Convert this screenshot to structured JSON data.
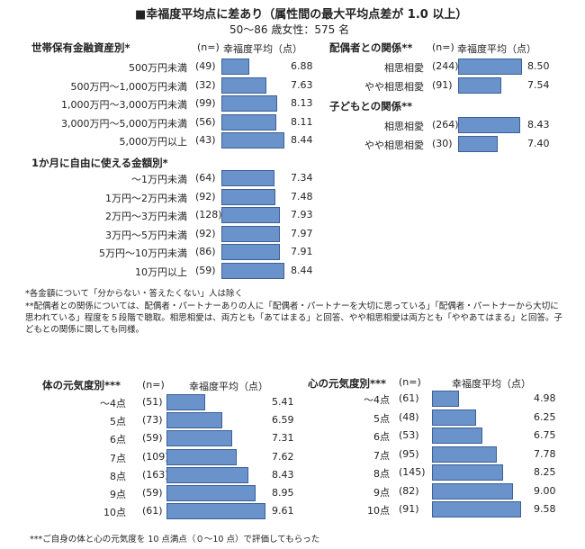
{
  "title": "■幸福度平均点に差あり（属性間の最大平均点差が 1.0 以上）",
  "subtitle": "50～86 歳女性：575 名",
  "header_n": "(n=)",
  "header_avg": "幸福度平均（点）",
  "colors": {
    "bar": "#6a93cc",
    "bar_border": "#3c5f95"
  },
  "chart_data": [
    {
      "type": "bar",
      "title": "世帯保有金融資産別*",
      "categories": [
        "500万円未満",
        "500万円～1,000万円未満",
        "1,000万円～3,000万円未満",
        "3,000万円～5,000万円未満",
        "5,000万円以上"
      ],
      "n": [
        "(49)",
        "(32)",
        "(99)",
        "(56)",
        "(43)"
      ],
      "values": [
        6.88,
        7.63,
        8.13,
        8.11,
        8.44
      ],
      "labels": [
        "6.88",
        "7.63",
        "8.13",
        "8.11",
        "8.44"
      ]
    },
    {
      "type": "bar",
      "title": "1か月に自由に使える金額別*",
      "categories": [
        "～1万円未満",
        "1万円～2万円未満",
        "2万円～3万円未満",
        "3万円～5万円未満",
        "5万円～10万円未満",
        "10万円以上"
      ],
      "n": [
        "(64)",
        "(92)",
        "(128)",
        "(92)",
        "(86)",
        "(59)"
      ],
      "values": [
        7.34,
        7.48,
        7.93,
        7.97,
        7.91,
        8.44
      ],
      "labels": [
        "7.34",
        "7.48",
        "7.93",
        "7.97",
        "7.91",
        "8.44"
      ]
    },
    {
      "type": "bar",
      "title": "配偶者との関係**",
      "categories": [
        "相思相愛",
        "やや相思相愛"
      ],
      "n": [
        "(244)",
        "(91)"
      ],
      "values": [
        8.5,
        7.54
      ],
      "labels": [
        "8.50",
        "7.54"
      ]
    },
    {
      "type": "bar",
      "title": "子どもとの関係**",
      "categories": [
        "相思相愛",
        "やや相思相愛"
      ],
      "n": [
        "(264)",
        "(30)"
      ],
      "values": [
        8.43,
        7.4
      ],
      "labels": [
        "8.43",
        "7.40"
      ]
    },
    {
      "type": "bar",
      "title": "体の元気度別***",
      "categories": [
        "～4点",
        "5点",
        "6点",
        "7点",
        "8点",
        "9点",
        "10点"
      ],
      "n": [
        "(51)",
        "(73)",
        "(59)",
        "(109)",
        "(163)",
        "(59)",
        "(61)"
      ],
      "values": [
        5.41,
        6.59,
        7.31,
        7.62,
        8.43,
        8.95,
        9.61
      ],
      "labels": [
        "5.41",
        "6.59",
        "7.31",
        "7.62",
        "8.43",
        "8.95",
        "9.61"
      ]
    },
    {
      "type": "bar",
      "title": "心の元気度別***",
      "categories": [
        "～4点",
        "5点",
        "6点",
        "7点",
        "8点",
        "9点",
        "10点"
      ],
      "n": [
        "(61)",
        "(48)",
        "(53)",
        "(95)",
        "(145)",
        "(82)",
        "(91)"
      ],
      "values": [
        4.98,
        6.25,
        6.75,
        7.78,
        8.25,
        9.0,
        9.58
      ],
      "labels": [
        "4.98",
        "6.25",
        "6.75",
        "7.78",
        "8.25",
        "9.00",
        "9.58"
      ]
    }
  ],
  "notes_top": [
    "*各金額について「分からない・答えたくない」人は除く",
    "**配偶者との関係については、配偶者・パートナーありの人に「配偶者・パートナーを大切に思っている」「配偶者・パートナーから大切に思われている」程度を５段階で聴取。相思相愛は、両方とも「あてはまる」と回答、やや相思相愛は両方とも「ややあてはまる」と回答。子どもとの関係に関しても同様。"
  ],
  "note_bottom": "***ご自身の体と心の元気度を 10 点満点（０～10 点）で評価してもらった"
}
